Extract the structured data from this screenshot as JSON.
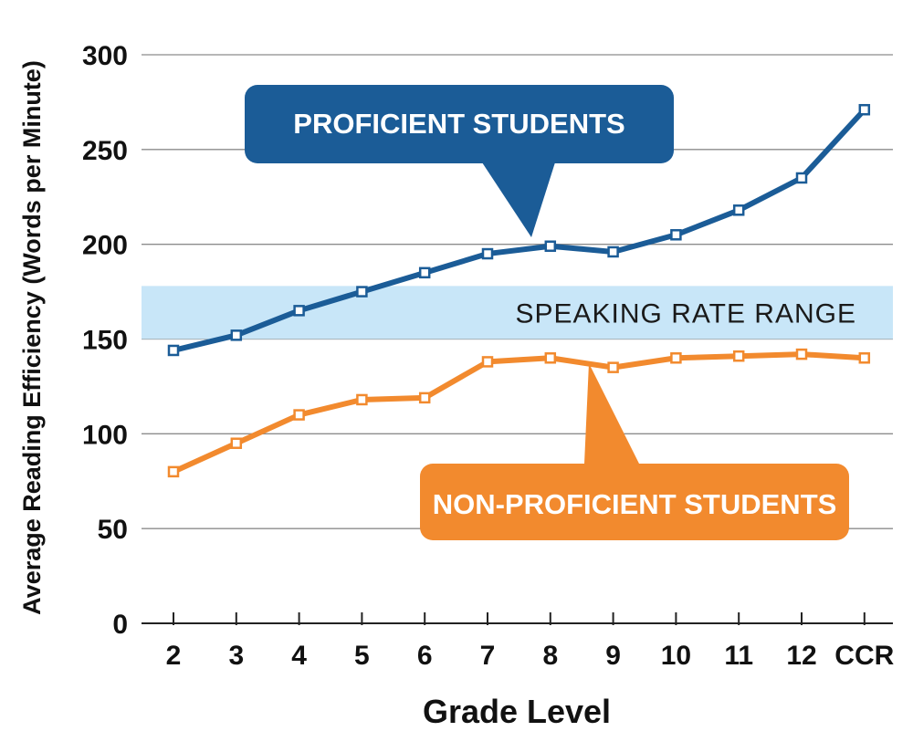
{
  "chart_data": {
    "type": "line",
    "xlabel": "Grade Level",
    "ylabel": "Average Reading Efficiency (Words per Minute)",
    "categories": [
      "2",
      "3",
      "4",
      "5",
      "6",
      "7",
      "8",
      "9",
      "10",
      "11",
      "12",
      "CCR"
    ],
    "ylim": [
      0,
      300
    ],
    "yticks": [
      0,
      50,
      100,
      150,
      200,
      250,
      300
    ],
    "grid": true,
    "band": {
      "label": "SPEAKING RATE RANGE",
      "from": 150,
      "to": 178,
      "color": "#c8e6f8"
    },
    "series": [
      {
        "name": "PROFICIENT STUDENTS",
        "color": "#1b5c97",
        "values": [
          144,
          152,
          165,
          175,
          185,
          195,
          199,
          196,
          205,
          218,
          235,
          271
        ]
      },
      {
        "name": "NON-PROFICIENT STUDENTS",
        "color": "#f28a2e",
        "values": [
          80,
          95,
          110,
          118,
          119,
          138,
          140,
          135,
          140,
          141,
          142,
          140
        ]
      }
    ]
  }
}
